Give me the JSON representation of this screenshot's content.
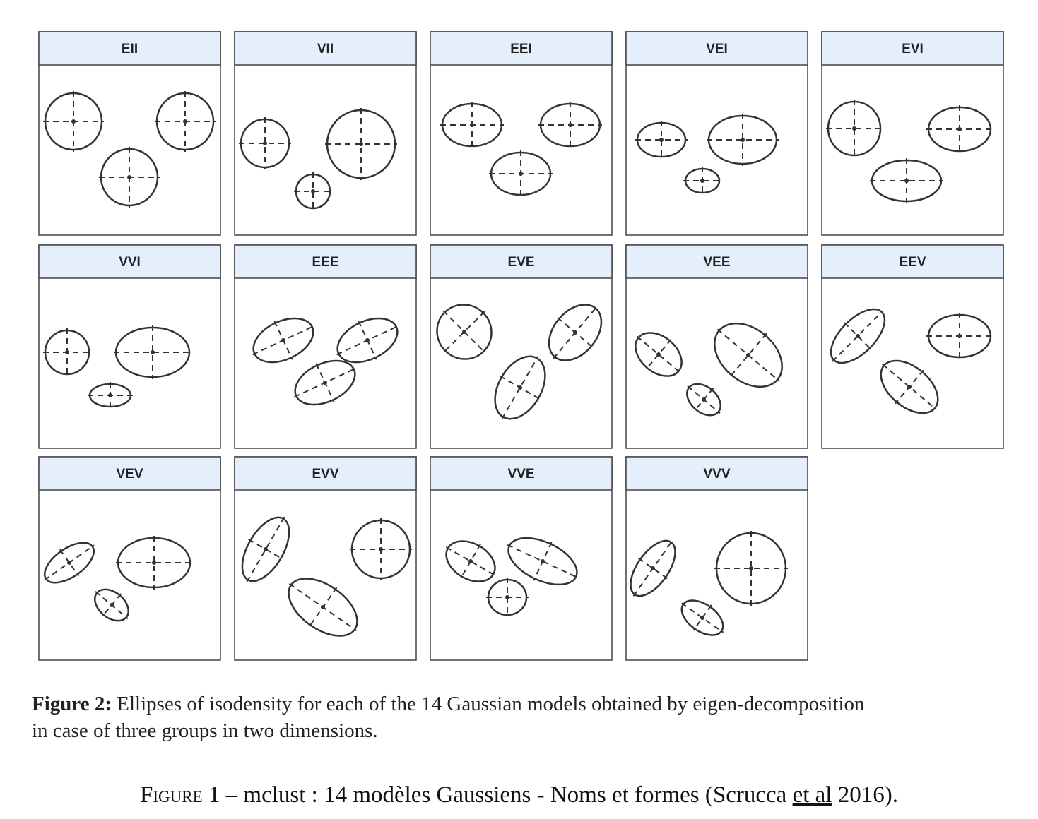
{
  "panels": [
    "EII",
    "VII",
    "EEI",
    "VEI",
    "EVI",
    "VVI",
    "EEE",
    "EVE",
    "VEE",
    "EEV",
    "VEV",
    "EVV",
    "VVE",
    "VVV"
  ],
  "caption": {
    "label": "Figure 2:",
    "lines": [
      "Ellipses of isodensity for each of the 14 Gaussian models obtained by eigen-decomposition",
      "in case of three groups in two dimensions."
    ]
  },
  "figure_caption": {
    "label": "Figure",
    "number": "1",
    "text": "– mclust : 14 modèles Gaussiens - Noms et formes (Scrucca",
    "underlined": "et al",
    "year": "2016)."
  }
}
